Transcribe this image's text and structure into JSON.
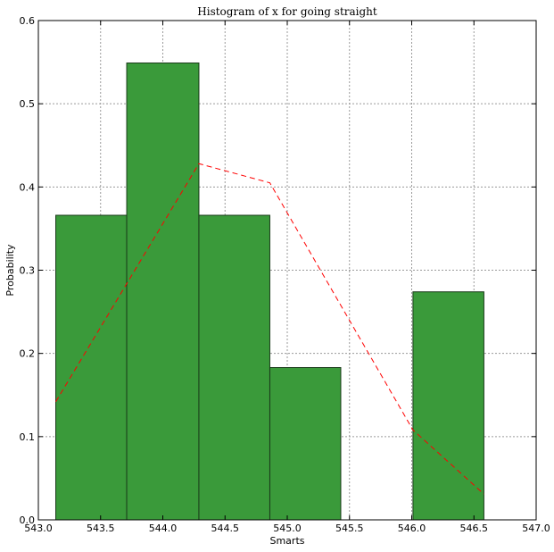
{
  "chart_data": {
    "type": "bar",
    "title": "Histogram of x for going straight",
    "xlabel": "Smarts",
    "ylabel": "Probability",
    "xlim": [
      543.0,
      547.0
    ],
    "ylim": [
      0.0,
      0.6
    ],
    "grid": true,
    "x_ticks": [
      "543.0",
      "543.5",
      "544.0",
      "544.5",
      "545.0",
      "545.5",
      "546.0",
      "546.5",
      "547.0"
    ],
    "y_ticks": [
      "0.0",
      "0.1",
      "0.2",
      "0.3",
      "0.4",
      "0.5",
      "0.6"
    ],
    "bins": [
      {
        "x0": 543.14,
        "x1": 543.71,
        "value": 0.366
      },
      {
        "x0": 543.71,
        "x1": 544.29,
        "value": 0.549
      },
      {
        "x0": 544.29,
        "x1": 544.86,
        "value": 0.366
      },
      {
        "x0": 544.86,
        "x1": 545.43,
        "value": 0.183
      },
      {
        "x0": 545.43,
        "x1": 546.01,
        "value": 0.0
      },
      {
        "x0": 546.01,
        "x1": 546.58,
        "value": 0.274
      }
    ],
    "series": [
      {
        "type": "line",
        "style": "dashed",
        "x": [
          543.14,
          544.29,
          544.86,
          546.01,
          546.58
        ],
        "y": [
          0.142,
          0.428,
          0.405,
          0.108,
          0.031
        ]
      }
    ],
    "colors": {
      "bar_fill": "#3a9a3a",
      "bar_edge": "#1a3a1a",
      "line": "#ff0000",
      "grid": "#9a9a9a",
      "axis": "#000000"
    }
  }
}
